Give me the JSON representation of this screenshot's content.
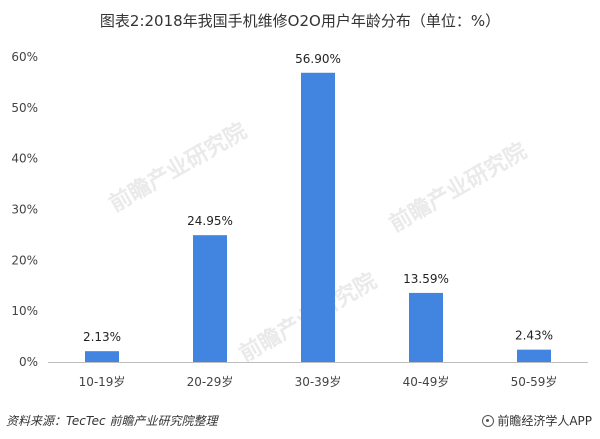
{
  "title": "图表2:2018年我国手机维修O2O用户年龄分布（单位：%）",
  "footer": {
    "source": "资料来源：TecTec 前瞻产业研究院整理",
    "brand": "前瞻经济学人APP"
  },
  "watermark": "前瞻产业研究院",
  "colors": {
    "bar": "#4285e0",
    "axis": "#bfbfbf"
  },
  "chart_data": {
    "type": "bar",
    "title": "图表2:2018年我国手机维修O2O用户年龄分布（单位：%）",
    "categories": [
      "10-19岁",
      "20-29岁",
      "30-39岁",
      "40-49岁",
      "50-59岁"
    ],
    "values": [
      2.13,
      24.95,
      56.9,
      13.59,
      2.43
    ],
    "data_labels": [
      "2.13%",
      "24.95%",
      "56.90%",
      "13.59%",
      "2.43%"
    ],
    "yticks": [
      "0%",
      "10%",
      "20%",
      "30%",
      "40%",
      "50%",
      "60%"
    ],
    "ylim": [
      0,
      60
    ],
    "grid": false,
    "legend": "none",
    "xlabel": "",
    "ylabel": ""
  }
}
